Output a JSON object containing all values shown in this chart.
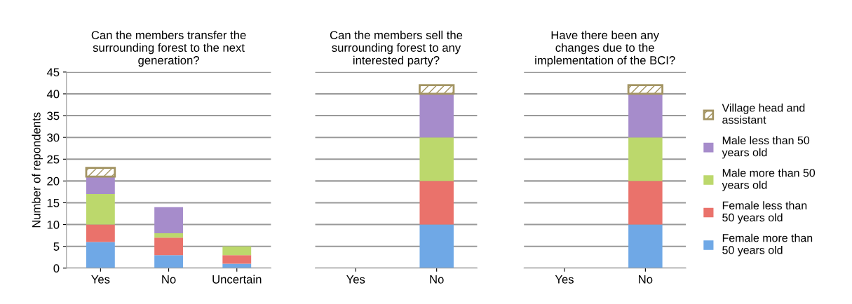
{
  "chart_data": [
    {
      "type": "bar",
      "title": "Can the members transfer the\nsurrounding forest to the next\ngeneration?",
      "ylabel": "Number of repondents",
      "categories": [
        "Yes",
        "No",
        "Uncertain"
      ],
      "stacked": true,
      "ylim": [
        0,
        45
      ],
      "yticks": [
        0,
        5,
        10,
        15,
        20,
        25,
        30,
        35,
        40,
        45
      ],
      "grid": "y",
      "legend": false,
      "series": [
        {
          "color": "#6fa8e6",
          "values": [
            6,
            3,
            1
          ]
        },
        {
          "color": "#ea726b",
          "values": [
            4,
            4,
            2
          ]
        },
        {
          "color": "#bcd86c",
          "values": [
            7,
            1,
            2
          ]
        },
        {
          "color": "#a68ccb",
          "values": [
            4,
            6,
            0
          ]
        },
        {
          "color": "#a39462",
          "values": [
            2,
            0,
            0
          ]
        }
      ]
    },
    {
      "type": "bar",
      "title": "Can the members sell the\nsurrounding forest to any\ninterested party?",
      "categories": [
        "Yes",
        "No"
      ],
      "stacked": true,
      "ylim": [
        0,
        45
      ],
      "yticks": [
        0,
        5,
        10,
        15,
        20,
        25,
        30,
        35,
        40,
        45
      ],
      "grid": "y",
      "legend": false,
      "tick_labels": "x",
      "series": [
        {
          "color": "#6fa8e6",
          "values": [
            0,
            10
          ]
        },
        {
          "color": "#ea726b",
          "values": [
            0,
            10
          ]
        },
        {
          "color": "#bcd86c",
          "values": [
            0,
            10
          ]
        },
        {
          "color": "#a68ccb",
          "values": [
            0,
            10
          ]
        },
        {
          "color": "#a39462",
          "values": [
            0,
            2
          ]
        }
      ]
    },
    {
      "type": "bar",
      "title": "Have there been any\nchanges due to the\nimplementation of the BCI?",
      "categories": [
        "Yes",
        "No"
      ],
      "stacked": true,
      "ylim": [
        0,
        45
      ],
      "yticks": [
        0,
        5,
        10,
        15,
        20,
        25,
        30,
        35,
        40,
        45
      ],
      "grid": "y",
      "legend": "right",
      "tick_labels": "x",
      "series": [
        {
          "name": "Female more than\n50 years old",
          "color": "#6fa8e6",
          "values": [
            0,
            10
          ]
        },
        {
          "name": "Female less than\n50 years old",
          "color": "#ea726b",
          "values": [
            0,
            10
          ]
        },
        {
          "name": "Male more than 50\nyears old",
          "color": "#bcd86c",
          "values": [
            0,
            10
          ]
        },
        {
          "name": "Male less than 50\nyears old",
          "color": "#a68ccb",
          "values": [
            0,
            10
          ]
        },
        {
          "name": "Village head and\nassistant",
          "color": "#a39462",
          "values": [
            0,
            2
          ]
        }
      ]
    }
  ]
}
